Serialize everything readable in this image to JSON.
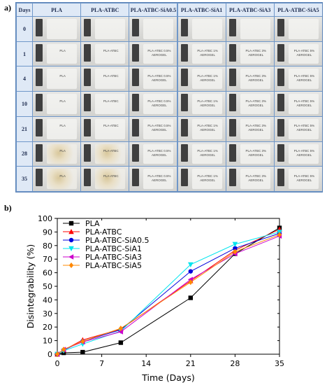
{
  "panel_a": {
    "label": "a)",
    "corner_header": "Days",
    "columns": [
      "PLA",
      "PLA-ATBC",
      "PLA-ATBC-SiA0.5",
      "PLA-ATBC-SiA1",
      "PLA-ATBC-SiA3",
      "PLA-ATBC-SiA5"
    ],
    "rows": [
      {
        "day": "0",
        "labels": [
          "",
          "",
          "",
          "",
          "",
          ""
        ]
      },
      {
        "day": "1",
        "labels": [
          "PLA",
          "PLA-ATBC",
          "PLA-ATBC 0.5% AEROGEL",
          "PLA-ATBC 1% AEROGEL",
          "PLA-ATBC 3% AEROGEL",
          "PLA-ATBC 5% AEROGEL"
        ]
      },
      {
        "day": "4",
        "labels": [
          "PLA",
          "PLA-ATBC",
          "PLA-ATBC 0.5% AEROGEL",
          "PLA-ATBC 1% AEROGEL",
          "PLA-ATBC 3% AEROGEL",
          "PLA-ATBC 5% AEROGEL"
        ]
      },
      {
        "day": "10",
        "labels": [
          "PLA",
          "PLA-ATBC",
          "PLA-ATBC 0.5% AEROGEL",
          "PLA-ATBC 1% AEROGEL",
          "PLA-ATBC 3% AEROGEL",
          "PLA-ATBC 5% AEROGEL"
        ]
      },
      {
        "day": "21",
        "labels": [
          "PLA",
          "PLA-ATBC",
          "PLA-ATBC 0.5% AEROGEL",
          "PLA-ATBC 1% AEROGEL",
          "PLA-ATBC 3% AEROGEL",
          "PLA-ATBC 5% AEROGEL"
        ]
      },
      {
        "day": "28",
        "labels": [
          "PLA",
          "PLA-ATBC",
          "PLA-ATBC 0.5% AEROGEL",
          "PLA-ATBC 1% AEROGEL",
          "PLA-ATBC 3% AEROGEL",
          "PLA-ATBC 5% AEROGEL"
        ]
      },
      {
        "day": "35",
        "labels": [
          "PLA",
          "PLA-ATBC",
          "PLA-ATBC 0.5% AEROGEL",
          "PLA-ATBC 1% AEROGEL",
          "PLA-ATBC 3% AEROGEL",
          "PLA-ATBC 5% AEROGEL"
        ]
      }
    ]
  },
  "panel_b": {
    "label": "b)"
  },
  "chart_data": {
    "type": "line",
    "title": "",
    "xlabel": "Time (Days)",
    "ylabel": "Disintegrability (%)",
    "x": [
      0,
      1,
      4,
      10,
      21,
      28,
      35
    ],
    "xlim": [
      0,
      35
    ],
    "ylim": [
      0,
      100
    ],
    "xticks": [
      0,
      7,
      14,
      21,
      28,
      35
    ],
    "yticks": [
      0,
      10,
      20,
      30,
      40,
      50,
      60,
      70,
      80,
      90,
      100
    ],
    "grid": false,
    "legend_position": "top-left",
    "series": [
      {
        "name": "PLA",
        "color": "#000000",
        "marker": "square",
        "values": [
          0,
          1,
          1.5,
          8.5,
          41.5,
          74,
          93
        ]
      },
      {
        "name": "PLA-ATBC",
        "color": "#ff0000",
        "marker": "triangle-up",
        "values": [
          0,
          3,
          10.5,
          18.5,
          54,
          76.5,
          92
        ]
      },
      {
        "name": "PLA-ATBC-SiA0.5",
        "color": "#0000dd",
        "marker": "circle",
        "values": [
          0,
          3,
          9.5,
          18,
          61,
          78,
          89
        ]
      },
      {
        "name": "PLA-ATBC-SiA1",
        "color": "#00e5ee",
        "marker": "triangle-down",
        "values": [
          0,
          2.5,
          7.5,
          17,
          66,
          81,
          90
        ]
      },
      {
        "name": "PLA-ATBC-SiA3",
        "color": "#cc00cc",
        "marker": "triangle-left",
        "values": [
          0,
          3.5,
          9,
          16.5,
          55,
          74,
          87
        ]
      },
      {
        "name": "PLA-ATBC-SiA5",
        "color": "#ff8800",
        "marker": "diamond",
        "values": [
          0,
          3.5,
          9.5,
          19,
          53,
          75.5,
          88
        ]
      }
    ]
  }
}
